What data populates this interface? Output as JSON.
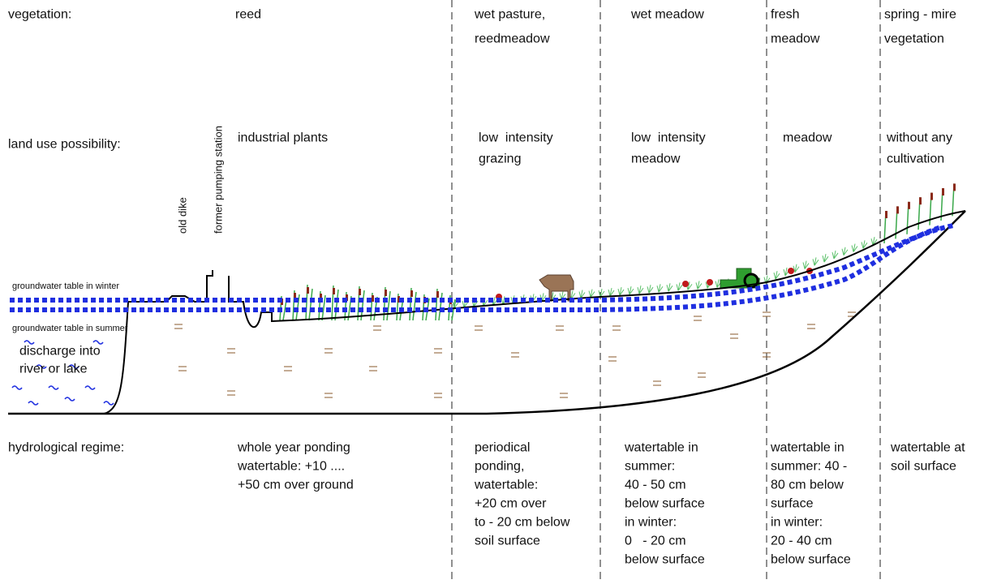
{
  "row_labels": {
    "vegetation": "vegetation:",
    "land_use": "land use possibility:",
    "hydrological": "hydrological regime:"
  },
  "zones": [
    {
      "vegetation": [
        "reed"
      ],
      "land_use": [
        "industrial plants"
      ],
      "hydrological": [
        "whole year ponding",
        "watertable: +10 ....",
        "+50 cm over ground"
      ]
    },
    {
      "vegetation": [
        "wet pasture,",
        "reedmeadow"
      ],
      "land_use": [
        "low  intensity",
        "grazing"
      ],
      "hydrological": [
        "periodical",
        "ponding,",
        "watertable:",
        "+20 cm over",
        "to - 20 cm below",
        "soil surface"
      ]
    },
    {
      "vegetation": [
        "wet meadow"
      ],
      "land_use": [
        "low  intensity",
        "meadow"
      ],
      "hydrological": [
        "watertable in",
        "summer:",
        "40 - 50 cm",
        "below surface",
        "in winter:",
        "0   - 20 cm",
        "below surface"
      ]
    },
    {
      "vegetation": [
        "fresh",
        "meadow"
      ],
      "land_use": [
        "meadow"
      ],
      "hydrological": [
        "watertable in",
        "summer: 40 -",
        "80 cm below",
        "surface",
        "in winter:",
        "20 - 40 cm",
        "below surface"
      ]
    },
    {
      "vegetation": [
        "spring - mire",
        "vegetation"
      ],
      "land_use": [
        "without any",
        "cultivation"
      ],
      "hydrological": [
        "watertable at",
        "soil surface"
      ]
    }
  ],
  "labels": {
    "old_dike": "old dike",
    "pumping_station": "former pumping station",
    "winter": "groundwater table in winter",
    "summer": "groundwater table in summer",
    "discharge": [
      "discharge into",
      "river or lake"
    ]
  }
}
